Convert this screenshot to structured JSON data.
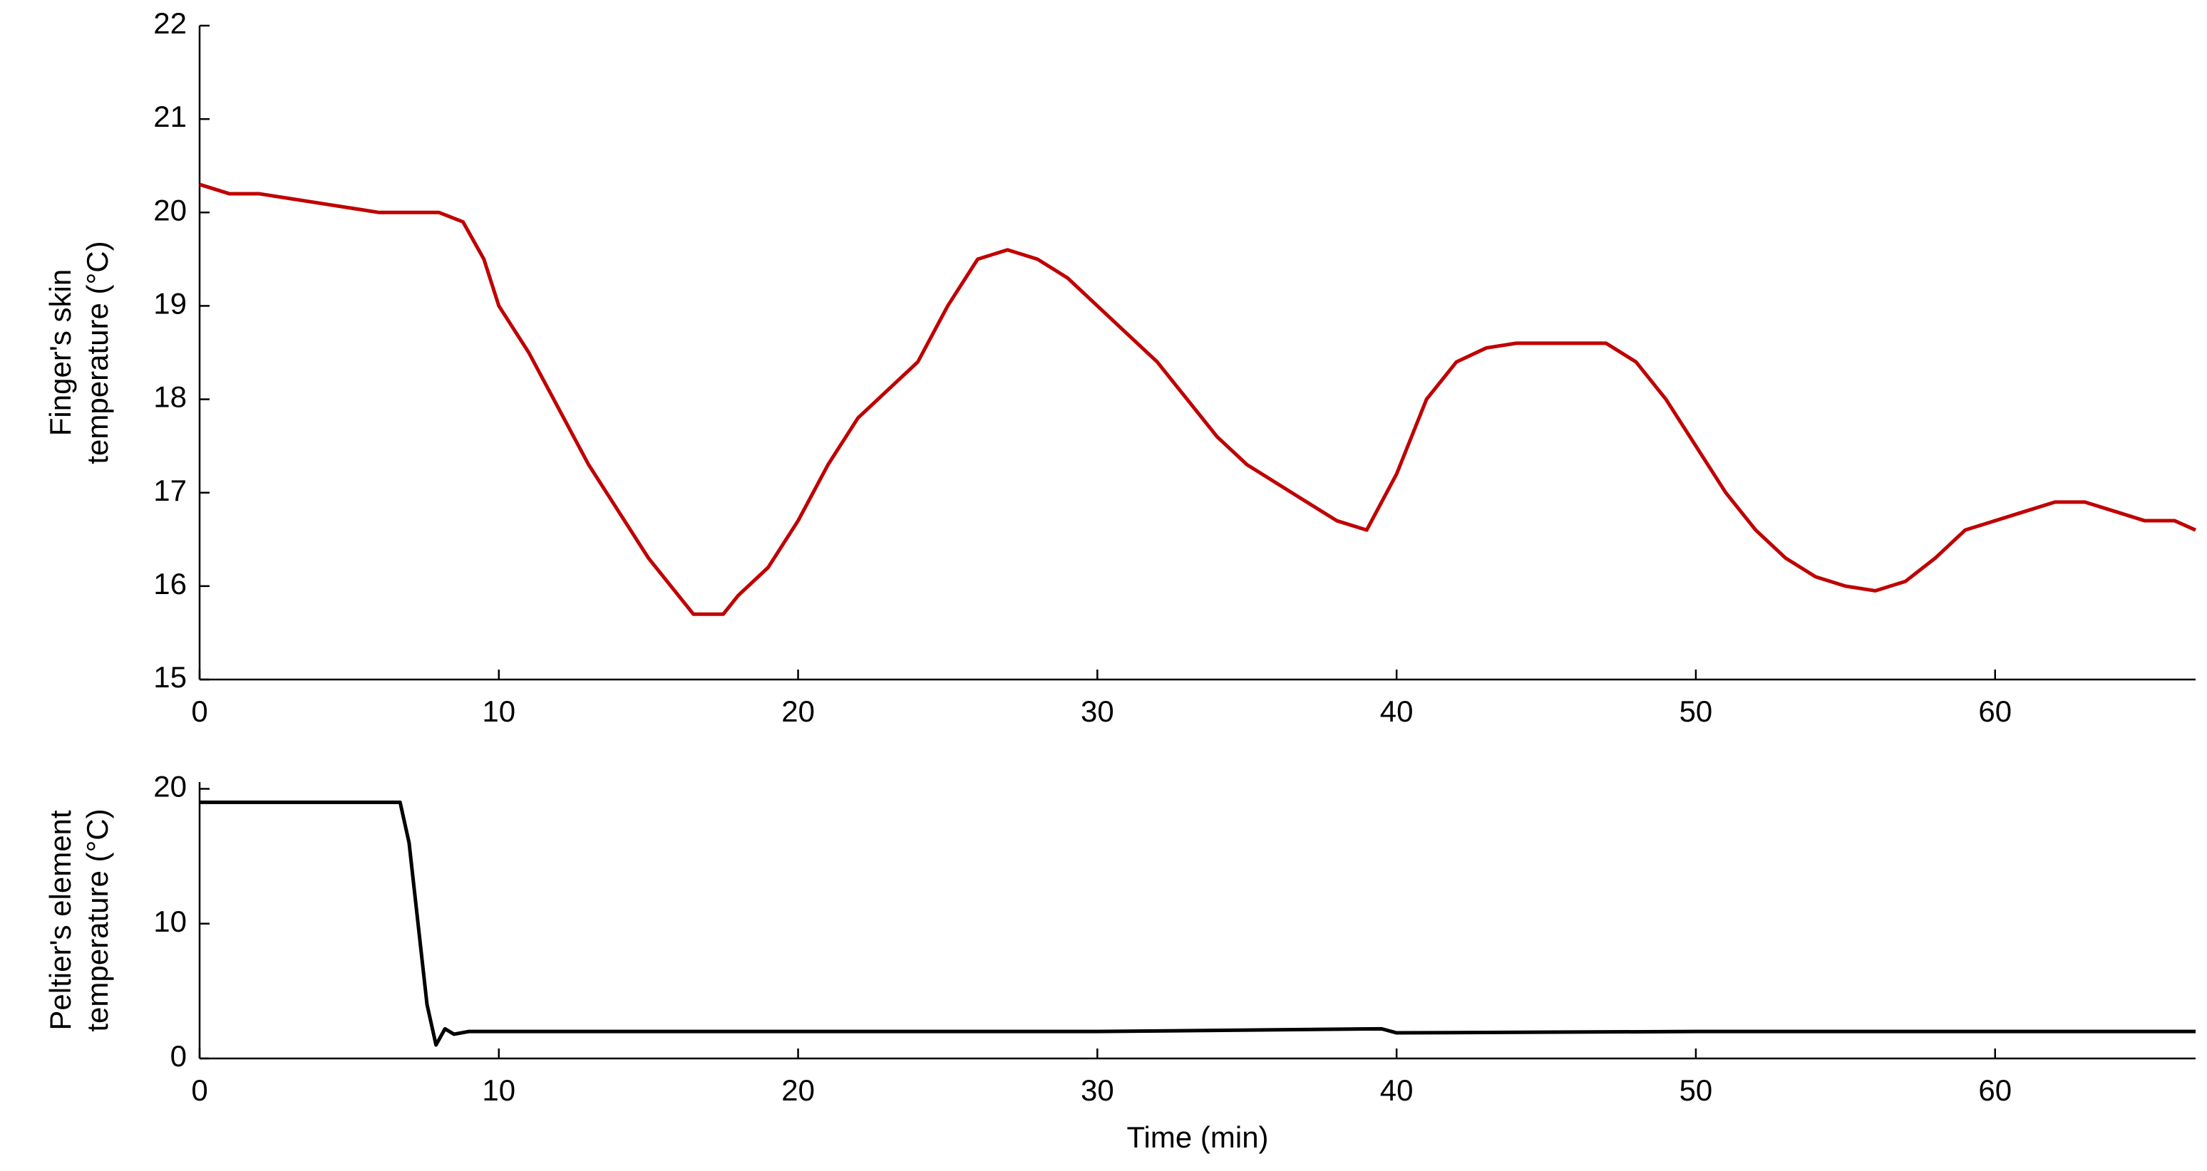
{
  "chart_data": [
    {
      "type": "line",
      "ylabel": [
        "Finger's skin",
        "temperature (°C)"
      ],
      "xlim": [
        0,
        66.7
      ],
      "xticks": [
        0,
        10,
        20,
        30,
        40,
        50,
        60
      ],
      "ylim": [
        15,
        22
      ],
      "yticks": [
        15,
        16,
        17,
        18,
        19,
        20,
        21,
        22
      ],
      "series": [
        {
          "color": "#c00000",
          "x": [
            0,
            1,
            2,
            3,
            4,
            5,
            6,
            7,
            8,
            8.8,
            9.5,
            10,
            11,
            12,
            13,
            14,
            15,
            16,
            16.5,
            17.5,
            18,
            19,
            20,
            21,
            22,
            23,
            24,
            25,
            26,
            27,
            28,
            29,
            30,
            31,
            32,
            33,
            34,
            35,
            36,
            37,
            38,
            39,
            40,
            41,
            42,
            43,
            44,
            45,
            46,
            47,
            48,
            49,
            50,
            51,
            52,
            53,
            54,
            55,
            56,
            57,
            58,
            59,
            60,
            61,
            62,
            63,
            64,
            65,
            66,
            66.7
          ],
          "values": [
            20.3,
            20.2,
            20.2,
            20.15,
            20.1,
            20.05,
            20.0,
            20.0,
            20.0,
            19.9,
            19.5,
            19.0,
            18.5,
            17.9,
            17.3,
            16.8,
            16.3,
            15.9,
            15.7,
            15.7,
            15.9,
            16.2,
            16.7,
            17.3,
            17.8,
            18.1,
            18.4,
            19.0,
            19.5,
            19.6,
            19.5,
            19.3,
            19.0,
            18.7,
            18.4,
            18.0,
            17.6,
            17.3,
            17.1,
            16.9,
            16.7,
            16.6,
            17.2,
            18.0,
            18.4,
            18.55,
            18.6,
            18.6,
            18.6,
            18.6,
            18.4,
            18.0,
            17.5,
            17.0,
            16.6,
            16.3,
            16.1,
            16.0,
            15.95,
            16.05,
            16.3,
            16.6,
            16.7,
            16.8,
            16.9,
            16.9,
            16.8,
            16.7,
            16.7,
            16.6
          ]
        }
      ]
    },
    {
      "type": "line",
      "ylabel": [
        "Peltier's element",
        "temperature (°C)"
      ],
      "xlabel": "Time (min)",
      "xlim": [
        0,
        66.7
      ],
      "xticks": [
        0,
        10,
        20,
        30,
        40,
        50,
        60
      ],
      "ylim": [
        0,
        20.5
      ],
      "yticks": [
        0,
        10,
        20
      ],
      "series": [
        {
          "color": "#000000",
          "x": [
            0,
            6.7,
            7,
            7.3,
            7.6,
            7.9,
            8.2,
            8.5,
            9,
            20,
            30,
            39.5,
            40,
            50,
            60,
            66.7
          ],
          "values": [
            19,
            19,
            16,
            10,
            4,
            1,
            2.2,
            1.8,
            2,
            2,
            2,
            2.2,
            1.9,
            2,
            2,
            2
          ]
        }
      ]
    }
  ]
}
